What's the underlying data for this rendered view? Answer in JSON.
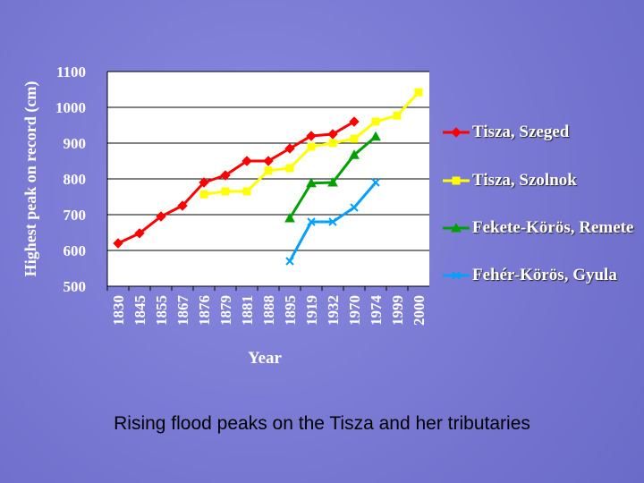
{
  "chart_data": {
    "type": "line",
    "y_label": "Highest peak on record (cm)",
    "x_label": "Year",
    "categories": [
      "1830",
      "1845",
      "1855",
      "1867",
      "1876",
      "1879",
      "1881",
      "1888",
      "1895",
      "1919",
      "1932",
      "1970",
      "1974",
      "1999",
      "2000"
    ],
    "series": [
      {
        "name": "Tisza, Szeged",
        "color": "#ff0000",
        "marker": "diamond",
        "values": [
          620,
          648,
          695,
          725,
          790,
          810,
          850,
          850,
          885,
          920,
          925,
          960,
          null,
          null,
          null
        ]
      },
      {
        "name": "Tisza, Szolnok",
        "color": "#ffff00",
        "marker": "square",
        "values": [
          null,
          null,
          null,
          null,
          757,
          765,
          765,
          823,
          830,
          890,
          900,
          912,
          960,
          977,
          1042
        ]
      },
      {
        "name": "Fekete-Körös, Remete",
        "color": "#00a000",
        "marker": "triangle",
        "values": [
          null,
          null,
          null,
          null,
          null,
          null,
          null,
          null,
          690,
          788,
          790,
          867,
          918,
          null,
          null
        ]
      },
      {
        "name": "Fehér-Körös, Gyula",
        "color": "#00a0ff",
        "marker": "x",
        "values": [
          null,
          null,
          null,
          null,
          null,
          null,
          null,
          null,
          570,
          680,
          680,
          720,
          790,
          null,
          null
        ]
      }
    ],
    "ylim": [
      500,
      1100
    ],
    "yticks": [
      500,
      600,
      700,
      800,
      900,
      1000,
      1100
    ],
    "grid": true
  },
  "caption": "Rising flood peaks on the Tisza and her tributaries"
}
